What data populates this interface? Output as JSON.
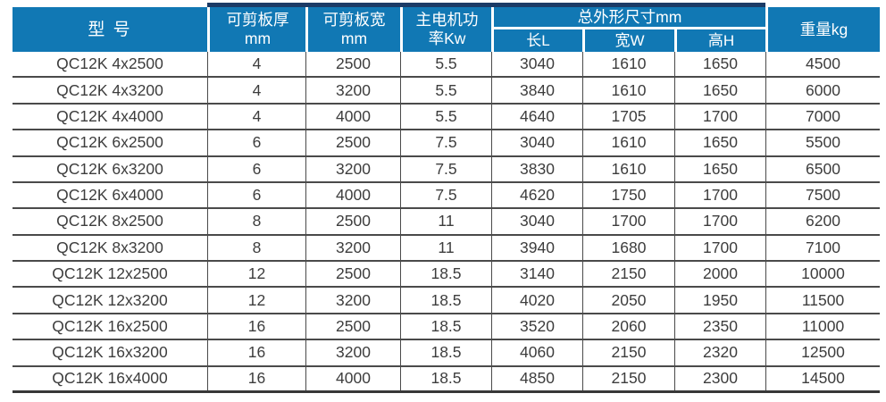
{
  "colors": {
    "header_bg": "#1178B4",
    "header_accent": "#1B3B66",
    "grid_line": "#4A4A4A",
    "text": "#3D3D3D",
    "header_text": "#FFFFFF"
  },
  "table": {
    "header": {
      "model": "型 号",
      "thickness_label": "可剪板厚",
      "thickness_unit": "mm",
      "width_label": "可剪板宽",
      "width_unit": "mm",
      "power_line1": "主电机功",
      "power_line2": "率Kw",
      "dims_group": "总外形尺寸mm",
      "dim_length": "长L",
      "dim_width": "宽W",
      "dim_height": "高H",
      "weight": "重量kg"
    },
    "rows": [
      [
        "QC12K 4x2500",
        "4",
        "2500",
        "5.5",
        "3040",
        "1610",
        "1650",
        "4500"
      ],
      [
        "QC12K 4x3200",
        "4",
        "3200",
        "5.5",
        "3840",
        "1610",
        "1650",
        "6000"
      ],
      [
        "QC12K 4x4000",
        "4",
        "4000",
        "5.5",
        "4640",
        "1705",
        "1700",
        "7000"
      ],
      [
        "QC12K 6x2500",
        "6",
        "2500",
        "7.5",
        "3040",
        "1610",
        "1650",
        "5500"
      ],
      [
        "QC12K 6x3200",
        "6",
        "3200",
        "7.5",
        "3830",
        "1610",
        "1650",
        "6500"
      ],
      [
        "QC12K 6x4000",
        "6",
        "4000",
        "7.5",
        "4620",
        "1750",
        "1700",
        "7500"
      ],
      [
        "QC12K 8x2500",
        "8",
        "2500",
        "11",
        "3040",
        "1700",
        "1700",
        "6200"
      ],
      [
        "QC12K 8x3200",
        "8",
        "3200",
        "11",
        "3940",
        "1680",
        "1700",
        "7100"
      ],
      [
        "QC12K 12x2500",
        "12",
        "2500",
        "18.5",
        "3140",
        "2150",
        "2000",
        "10000"
      ],
      [
        "QC12K 12x3200",
        "12",
        "3200",
        "18.5",
        "4020",
        "2050",
        "1950",
        "11500"
      ],
      [
        "QC12K 16x2500",
        "16",
        "2500",
        "18.5",
        "3520",
        "2060",
        "2350",
        "11000"
      ],
      [
        "QC12K 16x3200",
        "16",
        "3200",
        "18.5",
        "4060",
        "2150",
        "2320",
        "12500"
      ],
      [
        "QC12K 16x4000",
        "16",
        "4000",
        "18.5",
        "4850",
        "2150",
        "2300",
        "14500"
      ]
    ]
  }
}
